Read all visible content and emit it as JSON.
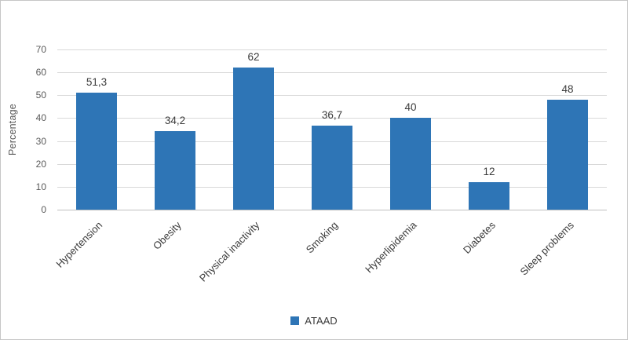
{
  "chart_data": {
    "type": "bar",
    "title": "",
    "xlabel": "",
    "ylabel": "Percentage",
    "categories": [
      "Hypertension",
      "Obesity",
      "Physical inactivity",
      "Smoking",
      "Hyperlipidemia",
      "Diabetes",
      "Sleep problems"
    ],
    "series": [
      {
        "name": "ATAAD",
        "values": [
          51.3,
          34.2,
          62,
          36.7,
          40,
          12,
          48
        ],
        "labels": [
          "51,3",
          "34,2",
          "62",
          "36,7",
          "40",
          "12",
          "48"
        ]
      }
    ],
    "ylim": [
      0,
      70
    ],
    "ytick_step": 10,
    "grid": true,
    "legend_position": "bottom",
    "bar_color": "#2e75b6",
    "gridline_color": "#d9d9d9"
  }
}
